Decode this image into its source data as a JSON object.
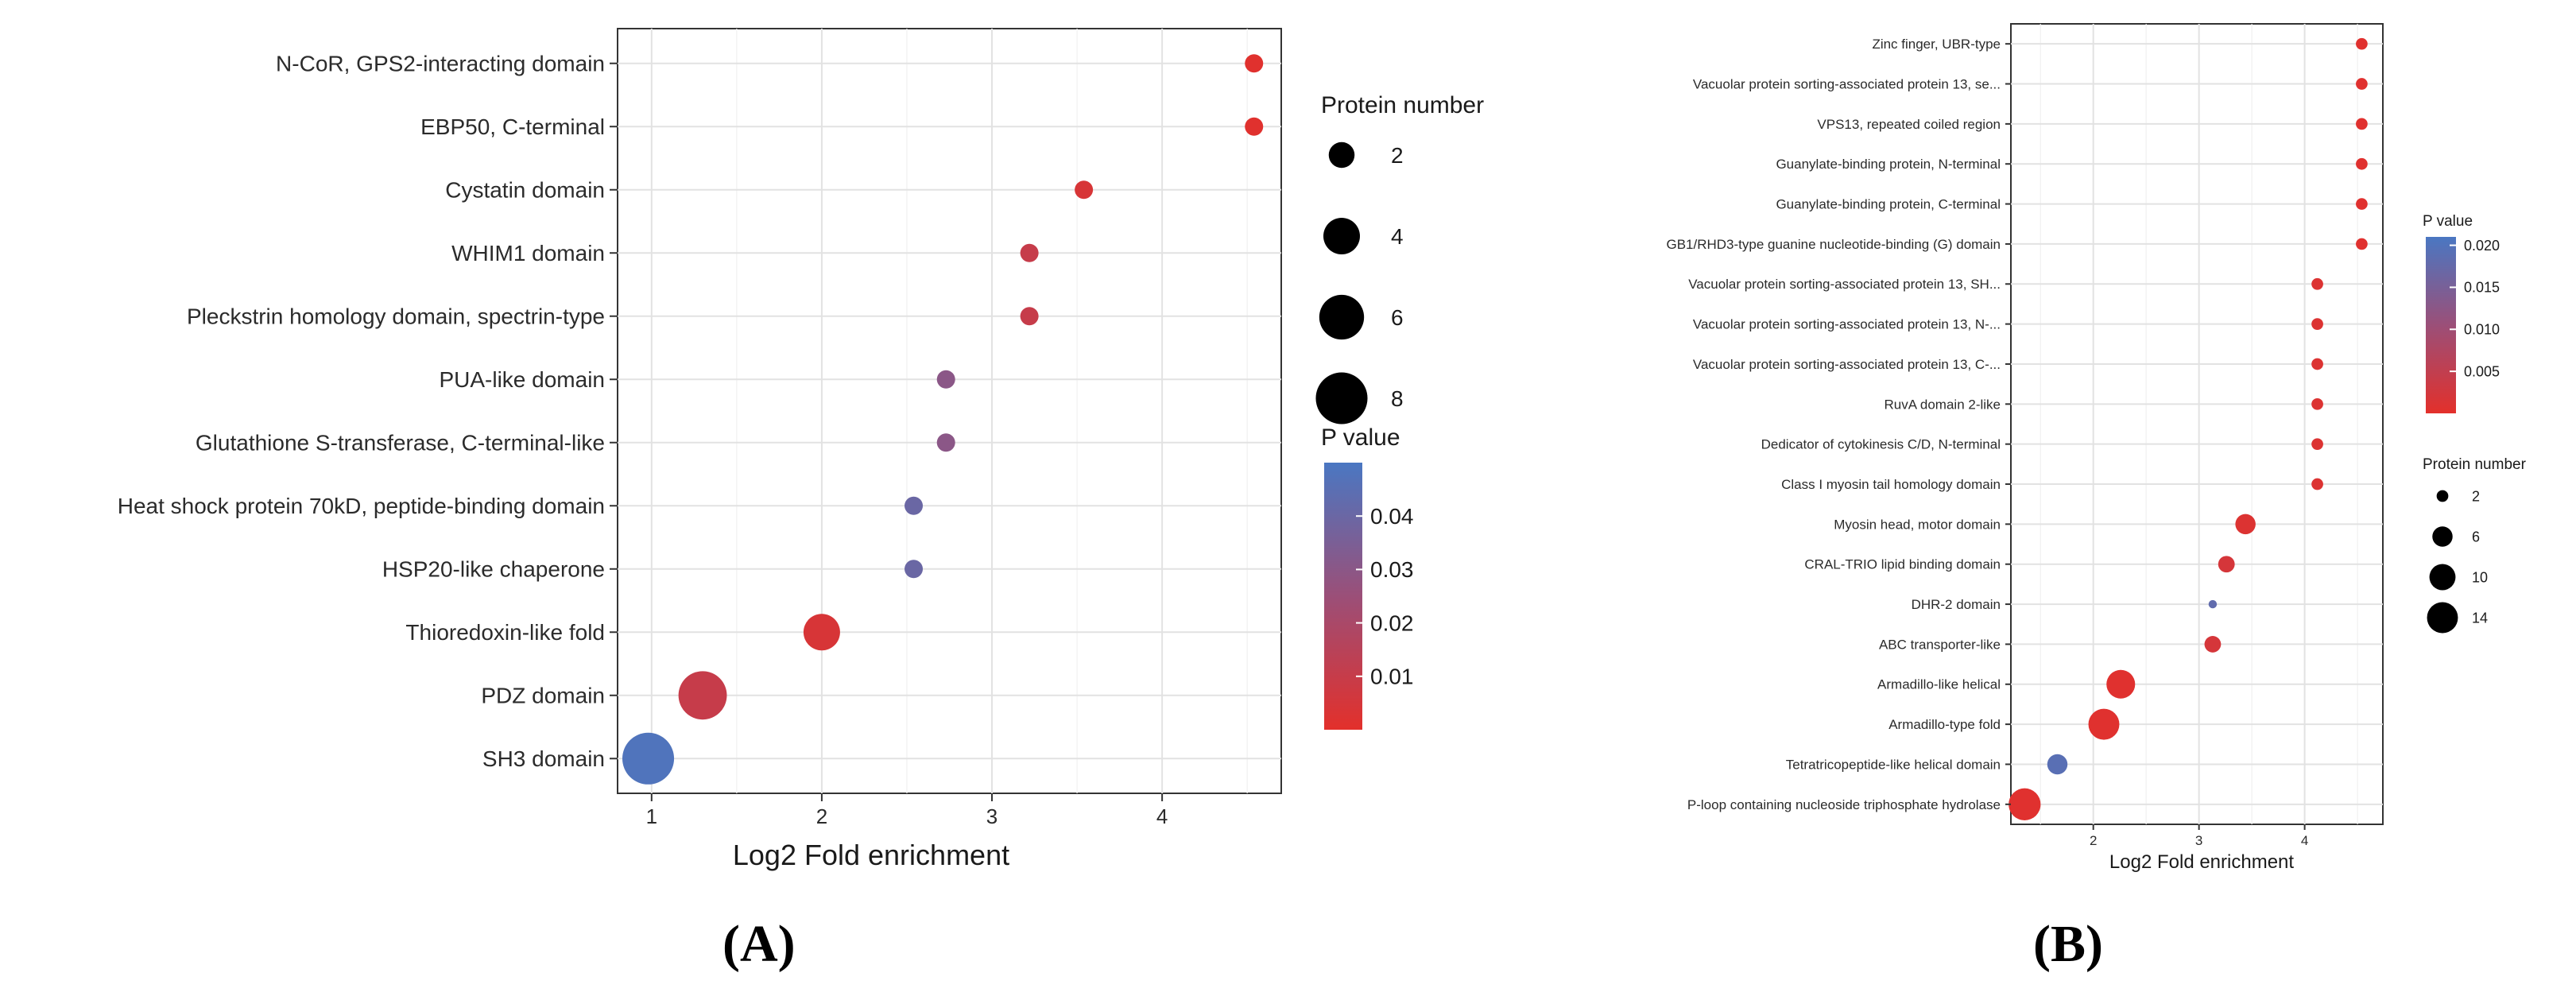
{
  "chart_data": [
    {
      "type": "scatter",
      "panel": "A",
      "caption": "(A)",
      "xlabel": "Log2 Fold enrichment",
      "ylabel": "",
      "xlim": [
        0.8,
        4.7
      ],
      "xticks": [
        1,
        2,
        3,
        4
      ],
      "grid": true,
      "categories": [
        "N-CoR, GPS2-interacting domain",
        "EBP50, C-terminal",
        "Cystatin domain",
        "WHIM1 domain",
        "Pleckstrin homology domain, spectrin-type",
        "PUA-like domain",
        "Glutathione S-transferase, C-terminal-like",
        "Heat shock protein 70kD, peptide-binding domain",
        "HSP20-like chaperone",
        "Thioredoxin-like fold",
        "PDZ domain",
        "SH3 domain"
      ],
      "x": [
        4.54,
        4.54,
        3.54,
        3.22,
        3.22,
        2.73,
        2.73,
        2.54,
        2.54,
        2.0,
        1.3,
        0.98
      ],
      "size": [
        1,
        1,
        1,
        1,
        1,
        1,
        1,
        1,
        1,
        4,
        7,
        8
      ],
      "pvalue": [
        0.001,
        0.001,
        0.004,
        0.01,
        0.01,
        0.03,
        0.03,
        0.04,
        0.04,
        0.004,
        0.01,
        0.048
      ],
      "size_legend": {
        "title": "Protein number",
        "values": [
          2,
          4,
          6,
          8
        ]
      },
      "color_legend": {
        "title": "P value",
        "ticks": [
          0.04,
          0.03,
          0.02,
          0.01
        ],
        "tick_labels": [
          "0.04",
          "0.03",
          "0.02",
          "0.01"
        ],
        "range": [
          0,
          0.05
        ]
      },
      "colors": {
        "low": "#e3302b",
        "mid": "#9b4f78",
        "high": "#4a77c2"
      }
    },
    {
      "type": "scatter",
      "panel": "B",
      "caption": "(B)",
      "xlabel": "Log2 Fold enrichment",
      "ylabel": "",
      "xlim": [
        1.22,
        4.74
      ],
      "xticks": [
        2,
        3,
        4
      ],
      "grid": true,
      "categories": [
        "Zinc finger, UBR-type",
        "Vacuolar protein sorting-associated protein 13, se...",
        "VPS13, repeated coiled region",
        "Guanylate-binding protein, N-terminal",
        "Guanylate-binding protein, C-terminal",
        "GB1/RHD3-type guanine nucleotide-binding (G) domain",
        "Vacuolar protein sorting-associated protein 13, SH...",
        "Vacuolar protein sorting-associated protein 13, N-...",
        "Vacuolar protein sorting-associated protein 13, C-...",
        "RuvA domain 2-like",
        "Dedicator of cytokinesis C/D, N-terminal",
        "Class I myosin tail homology domain",
        "Myosin head, motor domain",
        "CRAL-TRIO lipid binding domain",
        "DHR-2 domain",
        "ABC transporter-like",
        "Armadillo-like helical",
        "Armadillo-type fold",
        "Tetratricopeptide-like helical domain",
        "P-loop containing nucleoside triphosphate hydrolase"
      ],
      "x": [
        4.54,
        4.54,
        4.54,
        4.54,
        4.54,
        4.54,
        4.12,
        4.12,
        4.12,
        4.12,
        4.12,
        4.12,
        3.44,
        3.26,
        3.13,
        3.13,
        2.26,
        2.1,
        1.66,
        1.35
      ],
      "size": [
        2,
        2,
        2,
        2,
        2,
        2,
        2,
        2,
        2,
        2,
        2,
        2,
        6,
        4,
        1,
        4,
        12,
        14,
        6,
        15
      ],
      "pvalue": [
        0.0005,
        0.0005,
        0.0005,
        0.0005,
        0.0005,
        0.0005,
        0.001,
        0.001,
        0.001,
        0.001,
        0.001,
        0.001,
        0.001,
        0.002,
        0.018,
        0.002,
        0.0005,
        0.0005,
        0.019,
        0.0005
      ],
      "size_legend": {
        "title": "Protein number",
        "values": [
          2,
          6,
          10,
          14
        ]
      },
      "color_legend": {
        "title": "P value",
        "ticks": [
          0.02,
          0.015,
          0.01,
          0.005
        ],
        "tick_labels": [
          "0.020",
          "0.015",
          "0.010",
          "0.005"
        ],
        "range": [
          0,
          0.021
        ]
      },
      "colors": {
        "low": "#e3302b",
        "mid": "#9b4f78",
        "high": "#4a77c2"
      }
    }
  ]
}
